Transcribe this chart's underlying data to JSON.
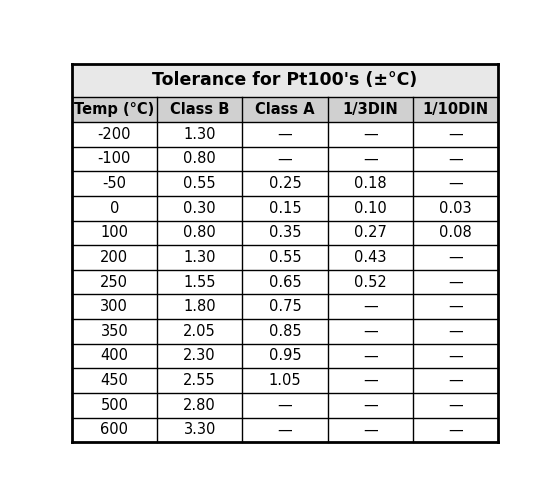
{
  "title": "Tolerance for Pt100's (±°C)",
  "columns": [
    "Temp (°C)",
    "Class B",
    "Class A",
    "1/3DIN",
    "1/10DIN"
  ],
  "rows": [
    [
      "-200",
      "1.30",
      "—",
      "—",
      "—"
    ],
    [
      "-100",
      "0.80",
      "—",
      "—",
      "—"
    ],
    [
      "-50",
      "0.55",
      "0.25",
      "0.18",
      "—"
    ],
    [
      "0",
      "0.30",
      "0.15",
      "0.10",
      "0.03"
    ],
    [
      "100",
      "0.80",
      "0.35",
      "0.27",
      "0.08"
    ],
    [
      "200",
      "1.30",
      "0.55",
      "0.43",
      "—"
    ],
    [
      "250",
      "1.55",
      "0.65",
      "0.52",
      "—"
    ],
    [
      "300",
      "1.80",
      "0.75",
      "—",
      "—"
    ],
    [
      "350",
      "2.05",
      "0.85",
      "—",
      "—"
    ],
    [
      "400",
      "2.30",
      "0.95",
      "—",
      "—"
    ],
    [
      "450",
      "2.55",
      "1.05",
      "—",
      "—"
    ],
    [
      "500",
      "2.80",
      "—",
      "—",
      "—"
    ],
    [
      "600",
      "3.30",
      "—",
      "—",
      "—"
    ]
  ],
  "header_bg": "#d0d0d0",
  "title_bg": "#e8e8e8",
  "row_bg": "#ffffff",
  "border_color": "#000000",
  "text_color": "#000000",
  "title_fontsize": 12.5,
  "header_fontsize": 10.5,
  "cell_fontsize": 10.5,
  "fig_bg": "#ffffff",
  "fig_width": 5.56,
  "fig_height": 4.99,
  "dpi": 100
}
